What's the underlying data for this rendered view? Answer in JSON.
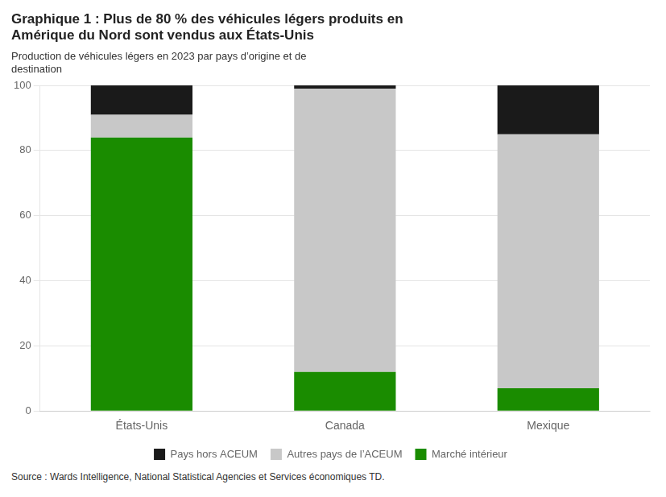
{
  "chart_data": {
    "type": "bar",
    "title": "Graphique 1 : Plus de 80 % des véhicules légers produits en\nAmérique du Nord sont vendus aux États-Unis",
    "subtitle": "Production de véhicules légers en 2023 par pays d’origine et de\ndestination",
    "source": "Source : Wards Intelligence, National Statistical Agencies et Services économiques TD.",
    "categories": [
      "États-Unis",
      "Canada",
      "Mexique"
    ],
    "series": [
      {
        "name": "Marché intérieur",
        "color": "#1a8c00",
        "values": [
          84,
          12,
          7
        ]
      },
      {
        "name": "Autres pays de l’ACEUM",
        "color": "#c8c8c8",
        "values": [
          7,
          87,
          78
        ]
      },
      {
        "name": "Pays hors ACEUM",
        "color": "#1a1a1a",
        "values": [
          9,
          1,
          15
        ]
      }
    ],
    "stacked": true,
    "ylim": [
      0,
      100
    ],
    "yticks": [
      0,
      20,
      40,
      60,
      80,
      100
    ],
    "grid": true,
    "legend": "bottom"
  }
}
